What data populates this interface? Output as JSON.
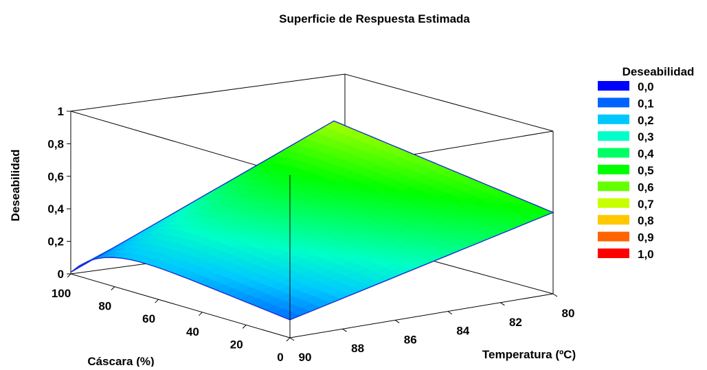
{
  "chart_data": {
    "type": "surface3d",
    "title": "Superficie de Respuesta Estimada",
    "xlabel": "Cáscara (%)",
    "ylabel": "Temperatura (ºC)",
    "zlabel": "Deseabilidad",
    "x_ticks": [
      "100",
      "80",
      "60",
      "40",
      "20",
      "0"
    ],
    "x_range": [
      0,
      100
    ],
    "y_ticks": [
      "80",
      "82",
      "84",
      "86",
      "88",
      "90"
    ],
    "y_range": [
      80,
      90
    ],
    "z_ticks": [
      "0",
      "0,2",
      "0,4",
      "0,6",
      "0,8",
      "1"
    ],
    "z_range": [
      0,
      1
    ],
    "legend": {
      "title": "Deseabilidad",
      "position": "right",
      "items": [
        {
          "label": "0,0",
          "color": "#0000FF"
        },
        {
          "label": "0,1",
          "color": "#0064FF"
        },
        {
          "label": "0,2",
          "color": "#00C8FF"
        },
        {
          "label": "0,3",
          "color": "#00FFC8"
        },
        {
          "label": "0,4",
          "color": "#00FF64"
        },
        {
          "label": "0,5",
          "color": "#00FF00"
        },
        {
          "label": "0,6",
          "color": "#64FF00"
        },
        {
          "label": "0,7",
          "color": "#C8FF00"
        },
        {
          "label": "0,8",
          "color": "#FFC800"
        },
        {
          "label": "0,9",
          "color": "#FF6400"
        },
        {
          "label": "1,0",
          "color": "#FF0000"
        }
      ]
    },
    "corner_values": {
      "cascara0_temp90": 0.11,
      "cascara100_temp90": 0.01,
      "cascara100_temp80": 0.67,
      "cascara0_temp80": 0.5
    }
  }
}
